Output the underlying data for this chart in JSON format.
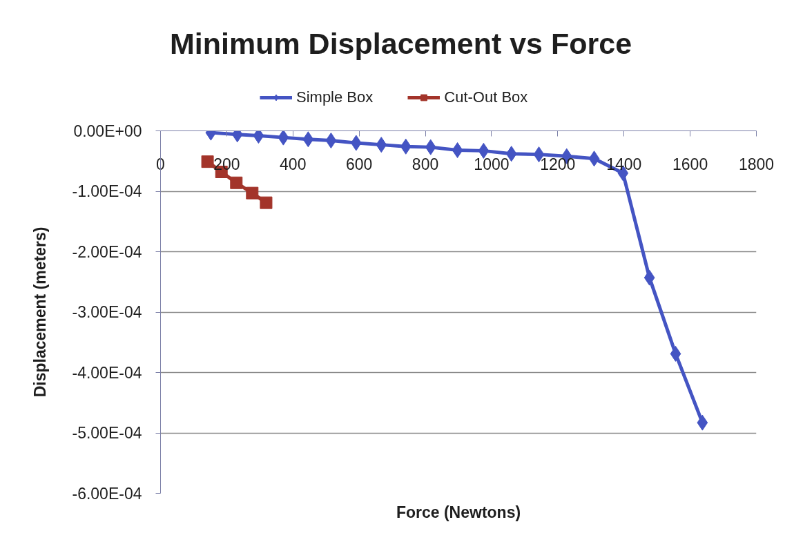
{
  "chart_data": {
    "type": "line",
    "title": "Minimum Displacement vs Force",
    "xlabel": "Force (Newtons)",
    "ylabel": "Displacement (meters)",
    "xlim": [
      0,
      1800
    ],
    "xticks": [
      0,
      200,
      400,
      600,
      800,
      1000,
      1200,
      1400,
      1600,
      1800
    ],
    "ylim": [
      -0.0006,
      0
    ],
    "yticks": [
      {
        "value": 0,
        "label": "0.00E+00"
      },
      {
        "value": -0.0001,
        "label": "-1.00E-04"
      },
      {
        "value": -0.0002,
        "label": "-2.00E-04"
      },
      {
        "value": -0.0003,
        "label": "-3.00E-04"
      },
      {
        "value": -0.0004,
        "label": "-4.00E-04"
      },
      {
        "value": -0.0005,
        "label": "-5.00E-04"
      },
      {
        "value": -0.0006,
        "label": "-6.00E-04"
      }
    ],
    "grid": "y",
    "legend": "top",
    "series": [
      {
        "name": "Simple Box",
        "color": "#4454c3",
        "marker": "diamond",
        "x": [
          152,
          232,
          296,
          371,
          446,
          515,
          591,
          667,
          741,
          816,
          897,
          976,
          1060,
          1143,
          1227,
          1310,
          1397,
          1477,
          1556,
          1637
        ],
        "values": [
          -3e-06,
          -6e-06,
          -8e-06,
          -1.1e-05,
          -1.4e-05,
          -1.6e-05,
          -2e-05,
          -2.3e-05,
          -2.6e-05,
          -2.7e-05,
          -3.2e-05,
          -3.3e-05,
          -3.8e-05,
          -3.9e-05,
          -4.2e-05,
          -4.6e-05,
          -7e-05,
          -0.000243,
          -0.000369,
          -0.000483
        ]
      },
      {
        "name": "Cut-Out Box",
        "color": "#a3342a",
        "marker": "square",
        "x": [
          142,
          184,
          229,
          277,
          319
        ],
        "values": [
          -5.1e-05,
          -6.8e-05,
          -8.6e-05,
          -0.000103,
          -0.000119
        ]
      }
    ]
  }
}
